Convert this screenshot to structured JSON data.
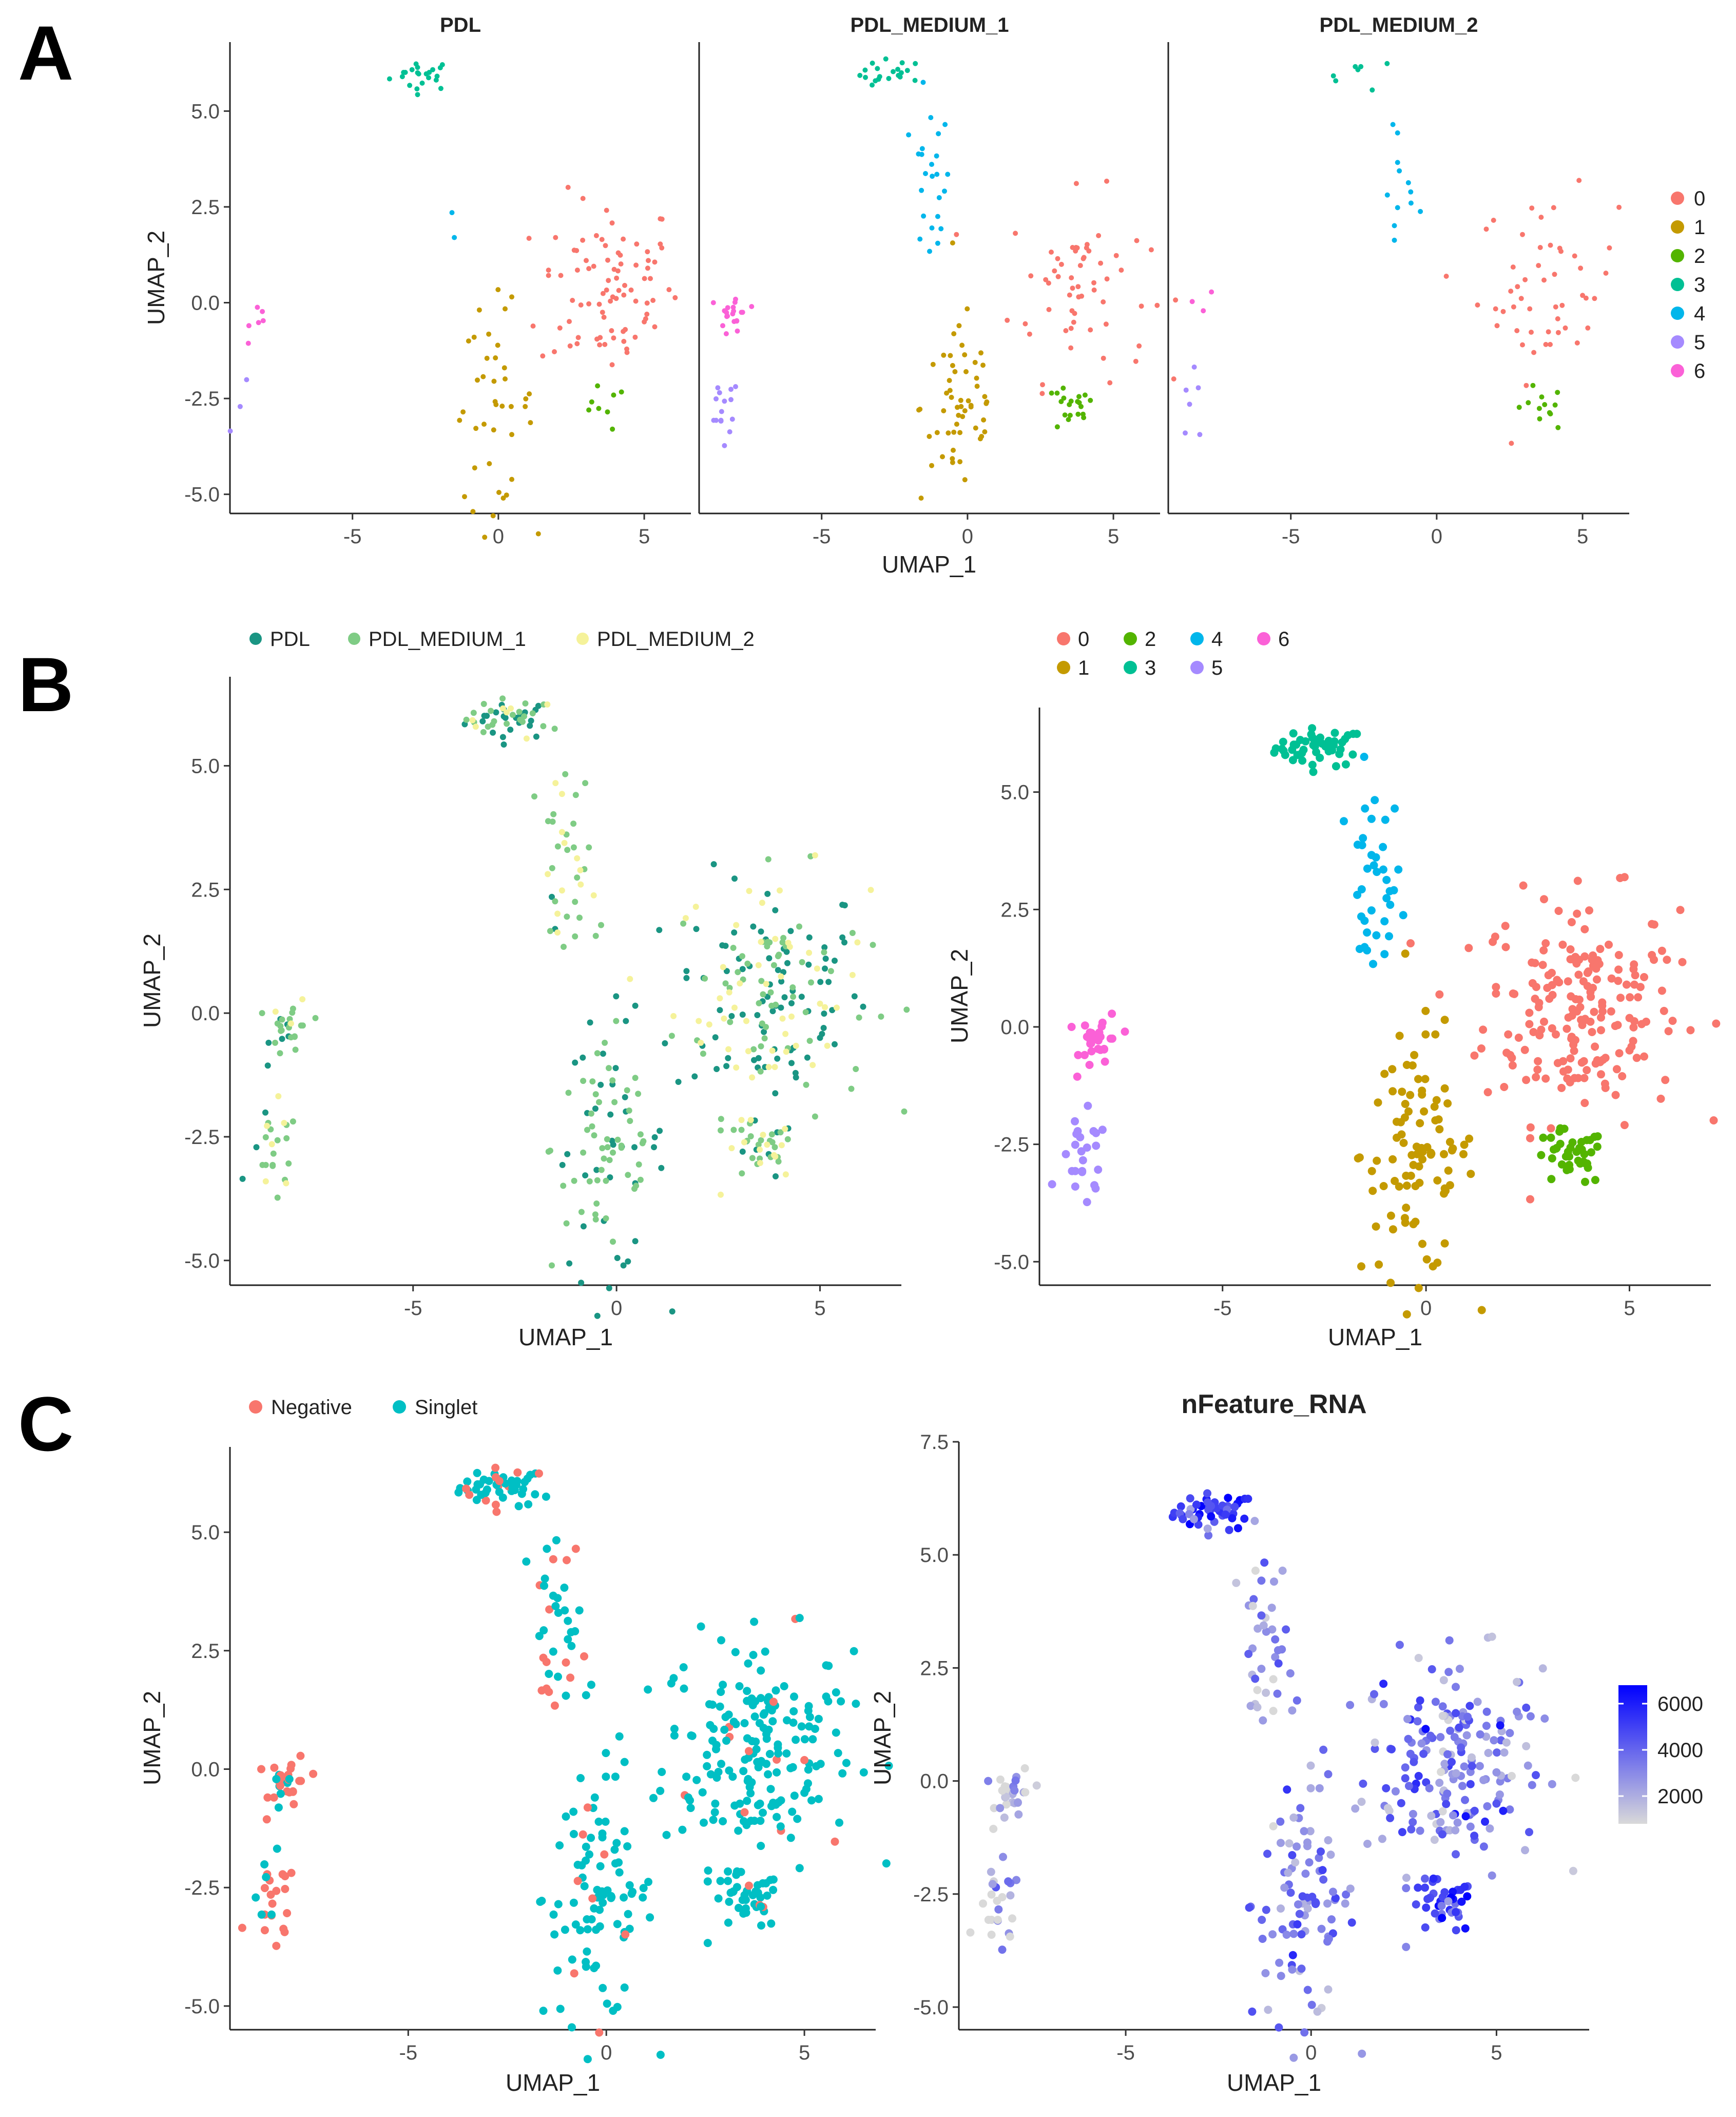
{
  "panels": {
    "A": "A",
    "B": "B",
    "C": "C"
  },
  "chart_data": [
    {
      "id": "A",
      "type": "scatter",
      "facets": [
        "PDL",
        "PDL_MEDIUM_1",
        "PDL_MEDIUM_2"
      ],
      "xlabel": "UMAP_1",
      "ylabel": "UMAP_2",
      "xlim": [
        -9.2,
        6.6
      ],
      "ylim": [
        -5.5,
        6.8
      ],
      "x_ticks": [
        "-5",
        "0",
        "5"
      ],
      "y_ticks": [
        "-5.0",
        "-2.5",
        "0.0",
        "2.5",
        "5.0"
      ],
      "legend": {
        "placement": "right",
        "entries": [
          {
            "label": "0",
            "color": "#F8766D"
          },
          {
            "label": "1",
            "color": "#C49A00"
          },
          {
            "label": "2",
            "color": "#53B400"
          },
          {
            "label": "3",
            "color": "#00C094"
          },
          {
            "label": "4",
            "color": "#00B6EB"
          },
          {
            "label": "5",
            "color": "#A58AFF"
          },
          {
            "label": "6",
            "color": "#FB61D7"
          }
        ]
      },
      "clusters": [
        {
          "label": "3",
          "center": [
            -2.6,
            5.95
          ],
          "spread": [
            0.55,
            0.2
          ],
          "counts": [
            22,
            20,
            7
          ]
        },
        {
          "label": "4",
          "center": [
            -1.3,
            3.0
          ],
          "spread": [
            0.35,
            1.1
          ],
          "counts": [
            2,
            24,
            12
          ]
        },
        {
          "label": "0",
          "center": [
            3.8,
            0.4
          ],
          "spread": [
            1.2,
            1.2
          ],
          "counts": [
            85,
            60,
            50
          ]
        },
        {
          "label": "1",
          "center": [
            -0.2,
            -2.7
          ],
          "spread": [
            0.7,
            1.3
          ],
          "counts": [
            40,
            55,
            0
          ]
        },
        {
          "label": "2",
          "center": [
            3.5,
            -2.8
          ],
          "spread": [
            0.45,
            0.3
          ],
          "counts": [
            8,
            20,
            12
          ]
        },
        {
          "label": "5",
          "center": [
            -8.4,
            -2.9
          ],
          "spread": [
            0.3,
            0.5
          ],
          "counts": [
            3,
            15,
            6
          ]
        },
        {
          "label": "6",
          "center": [
            -8.0,
            -0.3
          ],
          "spread": [
            0.25,
            0.3
          ],
          "counts": [
            6,
            20,
            3
          ]
        }
      ]
    },
    {
      "id": "B-left",
      "type": "scatter",
      "xlabel": "UMAP_1",
      "ylabel": "UMAP_2",
      "xlim": [
        -9.5,
        7.0
      ],
      "ylim": [
        -5.5,
        6.8
      ],
      "x_ticks": [
        "-5",
        "0",
        "5"
      ],
      "y_ticks": [
        "-5.0",
        "-2.5",
        "0.0",
        "2.5",
        "5.0"
      ],
      "legend": {
        "placement": "top",
        "entries": [
          {
            "label": "PDL",
            "color": "#1A9583"
          },
          {
            "label": "PDL_MEDIUM_1",
            "color": "#7FCC85"
          },
          {
            "label": "PDL_MEDIUM_2",
            "color": "#F5F29A"
          }
        ]
      }
    },
    {
      "id": "B-right",
      "type": "scatter",
      "xlabel": "UMAP_1",
      "ylabel": "UMAP_2",
      "xlim": [
        -9.5,
        7.0
      ],
      "ylim": [
        -5.5,
        6.8
      ],
      "x_ticks": [
        "-5",
        "0",
        "5"
      ],
      "y_ticks": [
        "-5.0",
        "-2.5",
        "0.0",
        "2.5",
        "5.0"
      ],
      "legend": {
        "placement": "top",
        "entries": [
          {
            "label": "0",
            "color": "#F8766D"
          },
          {
            "label": "2",
            "color": "#53B400"
          },
          {
            "label": "4",
            "color": "#00B6EB"
          },
          {
            "label": "6",
            "color": "#FB61D7"
          },
          {
            "label": "1",
            "color": "#C49A00"
          },
          {
            "label": "3",
            "color": "#00C094"
          },
          {
            "label": "5",
            "color": "#A58AFF"
          }
        ]
      }
    },
    {
      "id": "C-left",
      "type": "scatter",
      "xlabel": "UMAP_1",
      "ylabel": "UMAP_2",
      "xlim": [
        -9.5,
        6.8
      ],
      "ylim": [
        -5.5,
        6.8
      ],
      "x_ticks": [
        "-5",
        "0",
        "5"
      ],
      "y_ticks": [
        "-5.0",
        "-2.5",
        "0.0",
        "2.5",
        "5.0"
      ],
      "legend": {
        "placement": "top",
        "entries": [
          {
            "label": "Negative",
            "color": "#F8766D"
          },
          {
            "label": "Singlet",
            "color": "#00BFC4"
          }
        ]
      },
      "negative_fraction_by_cluster": {
        "0": 0.06,
        "1": 0.08,
        "2": 0.05,
        "3": 0.25,
        "4": 0.35,
        "5": 0.8,
        "6": 0.8
      }
    },
    {
      "id": "C-right",
      "type": "scatter",
      "title": "nFeature_RNA",
      "xlabel": "UMAP_1",
      "ylabel": "UMAP_2",
      "xlim": [
        -9.5,
        7.5
      ],
      "ylim": [
        -5.5,
        7.5
      ],
      "x_ticks": [
        "-5",
        "0",
        "5"
      ],
      "y_ticks": [
        "-5.0",
        "-2.5",
        "0.0",
        "2.5",
        "5.0",
        "7.5"
      ],
      "colorbar": {
        "placement": "right",
        "low_color": "#D9D9D9",
        "high_color": "#0000FF",
        "range": [
          800,
          6800
        ],
        "ticks": [
          "2000",
          "4000",
          "6000"
        ]
      },
      "mean_by_cluster": {
        "0": 3400,
        "1": 3300,
        "2": 4600,
        "3": 4900,
        "4": 2200,
        "5": 1300,
        "6": 1300
      }
    }
  ]
}
